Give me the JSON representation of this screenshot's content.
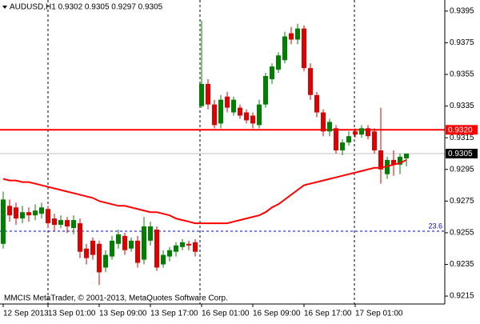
{
  "chart_data": {
    "type": "candlestick",
    "title": "AUDUSD,H1  0.9302 0.9305 0.9297 0.9305",
    "footer": "MMCIS MetaTrader, © 2001-2013, MetaQuotes Software Corp.",
    "categories": [
      "12 Sep 2013",
      null,
      null,
      null,
      null,
      null,
      null,
      "13 Sep 01:00",
      null,
      null,
      null,
      null,
      null,
      null,
      null,
      "13 Sep 09:00",
      null,
      null,
      null,
      null,
      null,
      null,
      null,
      "13 Sep 17:00",
      null,
      null,
      null,
      null,
      null,
      null,
      null,
      "16 Sep 01:00",
      null,
      null,
      null,
      null,
      null,
      null,
      null,
      "16 Sep 09:00",
      null,
      null,
      null,
      null,
      null,
      null,
      null,
      "16 Sep 17:00",
      null,
      null,
      null,
      null,
      null,
      null,
      null,
      "17 Sep 01:00",
      null,
      null,
      null,
      null,
      null,
      null,
      null,
      null
    ],
    "open": [
      0.9248,
      0.9272,
      0.9271,
      0.9264,
      0.9268,
      0.9266,
      0.9267,
      0.927,
      0.9264,
      0.926,
      0.9263,
      0.9258,
      0.9261,
      0.9245,
      0.925,
      0.9248,
      0.9233,
      0.924,
      0.9248,
      0.9253,
      0.9245,
      0.925,
      0.9238,
      0.925,
      0.9257,
      0.9235,
      0.924,
      0.9243,
      0.9246,
      0.9248,
      0.9249,
      0.9335,
      0.9349,
      0.9336,
      0.9324,
      0.9341,
      0.9331,
      0.9334,
      0.9331,
      0.9329,
      0.9323,
      0.9336,
      0.9352,
      0.9358,
      0.9364,
      0.9381,
      0.9377,
      0.9384,
      0.9359,
      0.9342,
      0.9331,
      0.9319,
      0.9321,
      0.9307,
      0.9312,
      0.9319,
      0.9317,
      0.9321,
      0.9319,
      0.9307,
      0.9292,
      0.9301,
      0.9298,
      0.9302
    ],
    "high": [
      0.9281,
      0.9276,
      0.9274,
      0.9272,
      0.9271,
      0.9273,
      0.9274,
      0.9272,
      0.9267,
      0.9266,
      0.9265,
      0.9266,
      0.9264,
      0.9248,
      0.9252,
      0.925,
      0.9244,
      0.9253,
      0.9257,
      0.9255,
      0.9252,
      0.9253,
      0.9265,
      0.9262,
      0.9259,
      0.9244,
      0.9246,
      0.9249,
      0.9251,
      0.925,
      0.9251,
      0.9389,
      0.9352,
      0.9339,
      0.9342,
      0.9344,
      0.9341,
      0.9336,
      0.9333,
      0.9331,
      0.9339,
      0.9356,
      0.9362,
      0.9369,
      0.9382,
      0.9385,
      0.9387,
      0.9386,
      0.9362,
      0.9344,
      0.9333,
      0.9327,
      0.9323,
      0.9314,
      0.9319,
      0.9321,
      0.9323,
      0.9323,
      0.9321,
      0.9334,
      0.9303,
      0.9307,
      0.9305,
      0.9305
    ],
    "low": [
      0.9245,
      0.9262,
      0.926,
      0.9261,
      0.9262,
      0.9263,
      0.9264,
      0.9258,
      0.9256,
      0.9258,
      0.9255,
      0.9254,
      0.9239,
      0.9235,
      0.9238,
      0.9222,
      0.923,
      0.9238,
      0.9245,
      0.9241,
      0.9243,
      0.9233,
      0.9235,
      0.9247,
      0.9231,
      0.9233,
      0.9237,
      0.924,
      0.9244,
      0.9244,
      0.924,
      0.9334,
      0.9333,
      0.9321,
      0.9321,
      0.9331,
      0.9329,
      0.9327,
      0.9324,
      0.9321,
      0.9321,
      0.9334,
      0.9349,
      0.9356,
      0.9362,
      0.9374,
      0.9374,
      0.9357,
      0.9339,
      0.9328,
      0.9316,
      0.9316,
      0.9305,
      0.9304,
      0.931,
      0.9315,
      0.9315,
      0.9314,
      0.9305,
      0.9286,
      0.9289,
      0.9291,
      0.9292,
      0.9297
    ],
    "close": [
      0.9276,
      0.9266,
      0.9264,
      0.9268,
      0.9266,
      0.9269,
      0.9271,
      0.9261,
      0.926,
      0.9263,
      0.9259,
      0.9263,
      0.9243,
      0.9239,
      0.9241,
      0.923,
      0.9241,
      0.925,
      0.9254,
      0.9244,
      0.925,
      0.9236,
      0.9259,
      0.9259,
      0.9233,
      0.9241,
      0.9244,
      0.9247,
      0.9249,
      0.9247,
      0.9243,
      0.9349,
      0.9336,
      0.9323,
      0.9339,
      0.9334,
      0.9339,
      0.9329,
      0.9326,
      0.9324,
      0.9336,
      0.9354,
      0.936,
      0.9367,
      0.9379,
      0.9377,
      0.9384,
      0.9359,
      0.9342,
      0.9331,
      0.9319,
      0.9325,
      0.9307,
      0.9312,
      0.9316,
      0.9317,
      0.9321,
      0.9316,
      0.9307,
      0.9295,
      0.9301,
      0.9298,
      0.9303,
      0.9305
    ],
    "up_color": "#008000",
    "down_color": "#e00000",
    "ma": {
      "color": "#ff0000",
      "values": [
        0.9289,
        0.9288,
        0.9288,
        0.9287,
        0.9287,
        0.9286,
        0.9285,
        0.9284,
        0.9283,
        0.9282,
        0.9281,
        0.928,
        0.9279,
        0.9278,
        0.9277,
        0.9275,
        0.9274,
        0.9273,
        0.9272,
        0.9272,
        0.9271,
        0.927,
        0.9269,
        0.9268,
        0.9268,
        0.9267,
        0.9266,
        0.9264,
        0.9263,
        0.9262,
        0.9261,
        0.9261,
        0.9261,
        0.9261,
        0.9261,
        0.9261,
        0.9262,
        0.9263,
        0.9264,
        0.9265,
        0.9266,
        0.9268,
        0.9271,
        0.9273,
        0.9276,
        0.9279,
        0.9282,
        0.9285,
        0.9286,
        0.9287,
        0.9288,
        0.9289,
        0.929,
        0.9291,
        0.9292,
        0.9293,
        0.9294,
        0.9295,
        0.9296,
        0.9296,
        0.9297,
        0.9298,
        0.9299,
        0.9301
      ]
    },
    "ylim": [
      0.921,
      0.9402
    ],
    "yticks": [
      0.9395,
      0.9375,
      0.9355,
      0.9335,
      0.9315,
      0.9295,
      0.9275,
      0.9255,
      0.9235,
      0.9215
    ],
    "hlines": [
      {
        "value": 0.932,
        "label": "0.9320",
        "color": "#ff0000"
      },
      {
        "value": 0.9305,
        "label": "0.9305",
        "color": "#c0c0c0"
      }
    ],
    "fib_level": {
      "level": 23.6,
      "price": 0.9256,
      "color": "#0000cc"
    }
  }
}
